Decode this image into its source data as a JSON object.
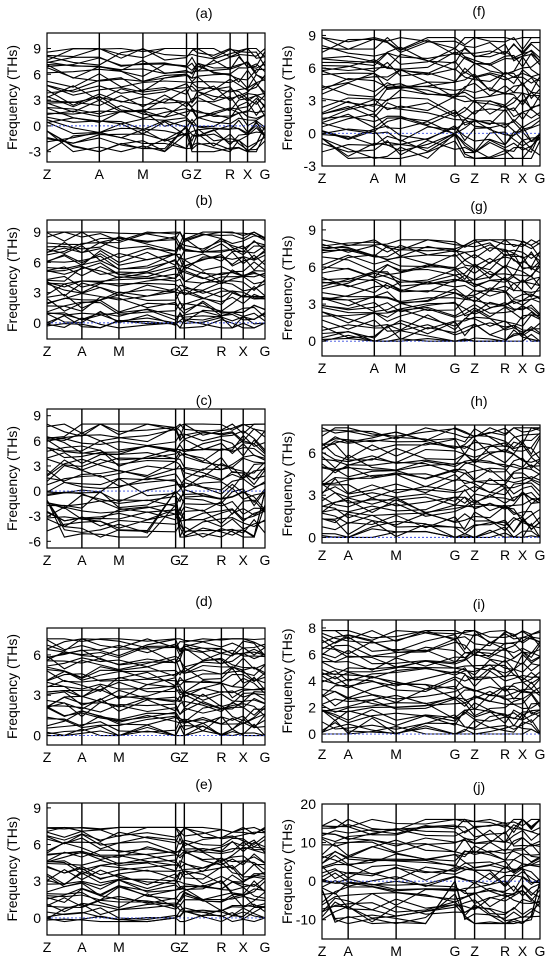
{
  "figure": {
    "chart_data": [
      {
        "type": "line",
        "panel_label": "(a)",
        "ylabel": "Frequency (THs)",
        "yticks": [
          9,
          6,
          3,
          0,
          -3
        ],
        "ylim": [
          -4.2,
          10.8
        ],
        "kpoints": [
          "Z",
          "A",
          "M",
          "G",
          "Z",
          "R",
          "X",
          "G"
        ],
        "kpoint_x": [
          0,
          0.24,
          0.44,
          0.64,
          0.69,
          0.84,
          0.92,
          1.0
        ],
        "zero_line": 0,
        "series_count": 36,
        "band_min": -3,
        "band_max": 9
      },
      {
        "type": "line",
        "panel_label": "(b)",
        "ylabel": "Frequency (THs)",
        "yticks": [
          9,
          6,
          3,
          0
        ],
        "ylim": [
          -1.6,
          10.2
        ],
        "kpoints": [
          "Z",
          "A",
          "M",
          "G",
          "Z",
          "R",
          "X",
          "G"
        ],
        "kpoint_x": [
          0,
          0.16,
          0.33,
          0.59,
          0.63,
          0.8,
          0.9,
          1.0
        ],
        "zero_line": 0,
        "series_count": 36,
        "band_min": -0.5,
        "band_max": 9
      },
      {
        "type": "line",
        "panel_label": "(c)",
        "ylabel": "Frequency (THs)",
        "yticks": [
          9,
          6,
          3,
          0,
          -3,
          -6
        ],
        "ylim": [
          -6.8,
          9.8
        ],
        "kpoints": [
          "Z",
          "A",
          "M",
          "G",
          "Z",
          "R",
          "X",
          "G"
        ],
        "kpoint_x": [
          0,
          0.16,
          0.33,
          0.59,
          0.63,
          0.8,
          0.9,
          1.0
        ],
        "zero_line": 0,
        "series_count": 36,
        "band_min": -5.5,
        "band_max": 8
      },
      {
        "type": "line",
        "panel_label": "(d)",
        "ylabel": "Frequency (THs)",
        "yticks": [
          6,
          3,
          0
        ],
        "ylim": [
          -0.7,
          8.0
        ],
        "kpoints": [
          "Z",
          "A",
          "M",
          "G",
          "Z",
          "R",
          "X",
          "G"
        ],
        "kpoint_x": [
          0,
          0.16,
          0.33,
          0.59,
          0.63,
          0.8,
          0.9,
          1.0
        ],
        "zero_line": 0,
        "series_count": 36,
        "band_min": 0,
        "band_max": 7.2
      },
      {
        "type": "line",
        "panel_label": "(e)",
        "ylabel": "Frequency (THs)",
        "yticks": [
          9,
          6,
          3,
          0
        ],
        "ylim": [
          -1.4,
          9.4
        ],
        "kpoints": [
          "Z",
          "A",
          "M",
          "G",
          "Z",
          "R",
          "X",
          "G"
        ],
        "kpoint_x": [
          0,
          0.16,
          0.33,
          0.59,
          0.63,
          0.8,
          0.9,
          1.0
        ],
        "zero_line": 0,
        "series_count": 36,
        "band_min": -0.3,
        "band_max": 7.4
      },
      {
        "type": "line",
        "panel_label": "(f)",
        "ylabel": "Frequency (THs)",
        "yticks": [
          9,
          6,
          3,
          0,
          -3
        ],
        "ylim": [
          -3,
          9.5
        ],
        "kpoints": [
          "Z",
          "A",
          "M",
          "G",
          "Z",
          "R",
          "X",
          "G"
        ],
        "kpoint_x": [
          0,
          0.24,
          0.36,
          0.61,
          0.7,
          0.84,
          0.92,
          1.0
        ],
        "zero_line": 0,
        "series_count": 36,
        "band_min": -2.3,
        "band_max": 8.8
      },
      {
        "type": "line",
        "panel_label": "(g)",
        "ylabel": "Frequency (THs)",
        "yticks": [
          9,
          6,
          3,
          0
        ],
        "ylim": [
          -1.2,
          9.8
        ],
        "kpoints": [
          "Z",
          "A",
          "M",
          "G",
          "Z",
          "R",
          "X",
          "G"
        ],
        "kpoint_x": [
          0,
          0.24,
          0.36,
          0.61,
          0.7,
          0.84,
          0.92,
          1.0
        ],
        "zero_line": 0,
        "series_count": 36,
        "band_min": 0,
        "band_max": 8.2
      },
      {
        "type": "line",
        "panel_label": "(h)",
        "ylabel": "Frequency (THs)",
        "yticks": [
          6,
          3,
          0
        ],
        "ylim": [
          -0.4,
          8.0
        ],
        "kpoints": [
          "Z",
          "A",
          "M",
          "G",
          "Z",
          "R",
          "X",
          "G"
        ],
        "kpoint_x": [
          0,
          0.12,
          0.34,
          0.61,
          0.7,
          0.84,
          0.92,
          1.0
        ],
        "zero_line": 0,
        "series_count": 36,
        "band_min": 0,
        "band_max": 7.8
      },
      {
        "type": "line",
        "panel_label": "(i)",
        "ylabel": "Frequency (THs)",
        "yticks": [
          8,
          6,
          4,
          2,
          0
        ],
        "ylim": [
          -0.6,
          8.6
        ],
        "kpoints": [
          "Z",
          "A",
          "M",
          "G",
          "Z",
          "R",
          "X",
          "G"
        ],
        "kpoint_x": [
          0,
          0.12,
          0.34,
          0.61,
          0.7,
          0.84,
          0.92,
          1.0
        ],
        "zero_line": 0,
        "series_count": 36,
        "band_min": 0,
        "band_max": 7.8
      },
      {
        "type": "line",
        "panel_label": "(j)",
        "ylabel": "Frequency (THs)",
        "yticks": [
          20,
          10,
          0,
          -10
        ],
        "ylim": [
          -15,
          20
        ],
        "kpoints": [
          "Z",
          "A",
          "M",
          "G",
          "Z",
          "R",
          "X",
          "G"
        ],
        "kpoint_x": [
          0,
          0.12,
          0.34,
          0.61,
          0.7,
          0.84,
          0.92,
          1.0
        ],
        "zero_line": 0,
        "series_count": 36,
        "band_min": -11,
        "band_max": 16
      }
    ]
  }
}
